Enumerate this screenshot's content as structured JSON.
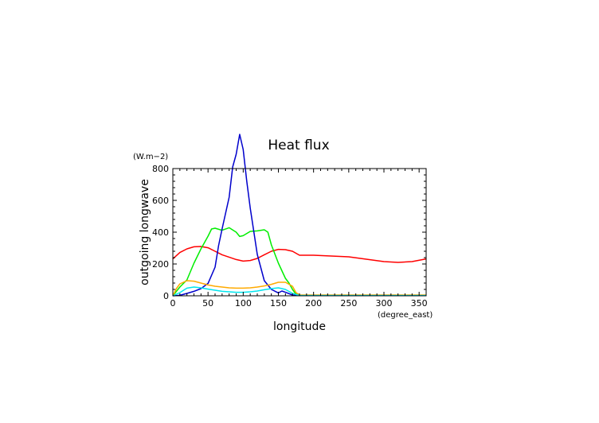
{
  "chart_data": {
    "type": "line",
    "title": "Heat flux",
    "xlabel": "longitude",
    "ylabel": "outgoing longwave",
    "x_unit": "(degree_east)",
    "y_unit": "(W.m−2)",
    "xlim": [
      0,
      360
    ],
    "ylim": [
      0,
      800
    ],
    "x_ticks": [
      "0",
      "50",
      "100",
      "150",
      "200",
      "250",
      "300",
      "350"
    ],
    "y_ticks": [
      "0",
      "200",
      "400",
      "600",
      "800"
    ],
    "grid": false,
    "series": [
      {
        "color": "#ff0000",
        "x": [
          0,
          10,
          20,
          30,
          40,
          50,
          60,
          70,
          80,
          90,
          100,
          110,
          120,
          130,
          140,
          150,
          160,
          170,
          180,
          200,
          250,
          300,
          320,
          340,
          360
        ],
        "y": [
          232,
          272,
          295,
          308,
          310,
          302,
          280,
          258,
          243,
          228,
          218,
          222,
          235,
          258,
          280,
          292,
          290,
          280,
          255,
          255,
          245,
          215,
          210,
          215,
          232
        ]
      },
      {
        "color": "#00ee00",
        "x": [
          0,
          10,
          20,
          30,
          40,
          50,
          55,
          60,
          70,
          80,
          90,
          95,
          100,
          110,
          120,
          130,
          135,
          140,
          150,
          160,
          165,
          170,
          175,
          180,
          200,
          250,
          300,
          360
        ],
        "y": [
          0,
          55,
          100,
          205,
          295,
          375,
          420,
          425,
          412,
          428,
          400,
          373,
          378,
          405,
          408,
          415,
          400,
          320,
          205,
          110,
          80,
          40,
          10,
          3,
          3,
          3,
          3,
          3
        ]
      },
      {
        "color": "#0000cc",
        "x": [
          0,
          10,
          20,
          30,
          40,
          50,
          60,
          65,
          70,
          80,
          85,
          90,
          95,
          100,
          105,
          110,
          120,
          130,
          140,
          150,
          155,
          160,
          170,
          180,
          200,
          250,
          300,
          360
        ],
        "y": [
          0,
          3,
          15,
          28,
          45,
          78,
          180,
          315,
          420,
          620,
          810,
          890,
          1015,
          920,
          720,
          550,
          260,
          95,
          40,
          18,
          30,
          22,
          5,
          2,
          2,
          2,
          2,
          2
        ]
      },
      {
        "color": "#ffaa00",
        "x": [
          0,
          5,
          10,
          20,
          30,
          40,
          50,
          60,
          70,
          80,
          90,
          100,
          110,
          120,
          130,
          140,
          150,
          160,
          170,
          175,
          180,
          200,
          250,
          300,
          360
        ],
        "y": [
          0,
          45,
          75,
          95,
          92,
          80,
          68,
          60,
          55,
          50,
          48,
          48,
          50,
          55,
          62,
          72,
          85,
          85,
          60,
          20,
          5,
          5,
          5,
          5,
          5
        ]
      },
      {
        "color": "#00e5ee",
        "x": [
          0,
          10,
          20,
          30,
          40,
          50,
          60,
          70,
          80,
          90,
          100,
          110,
          120,
          130,
          140,
          150,
          160,
          170,
          180,
          200,
          250,
          300,
          360
        ],
        "y": [
          0,
          20,
          48,
          55,
          50,
          42,
          35,
          28,
          25,
          22,
          22,
          25,
          30,
          38,
          45,
          50,
          40,
          15,
          2,
          2,
          2,
          2,
          2
        ]
      }
    ]
  }
}
